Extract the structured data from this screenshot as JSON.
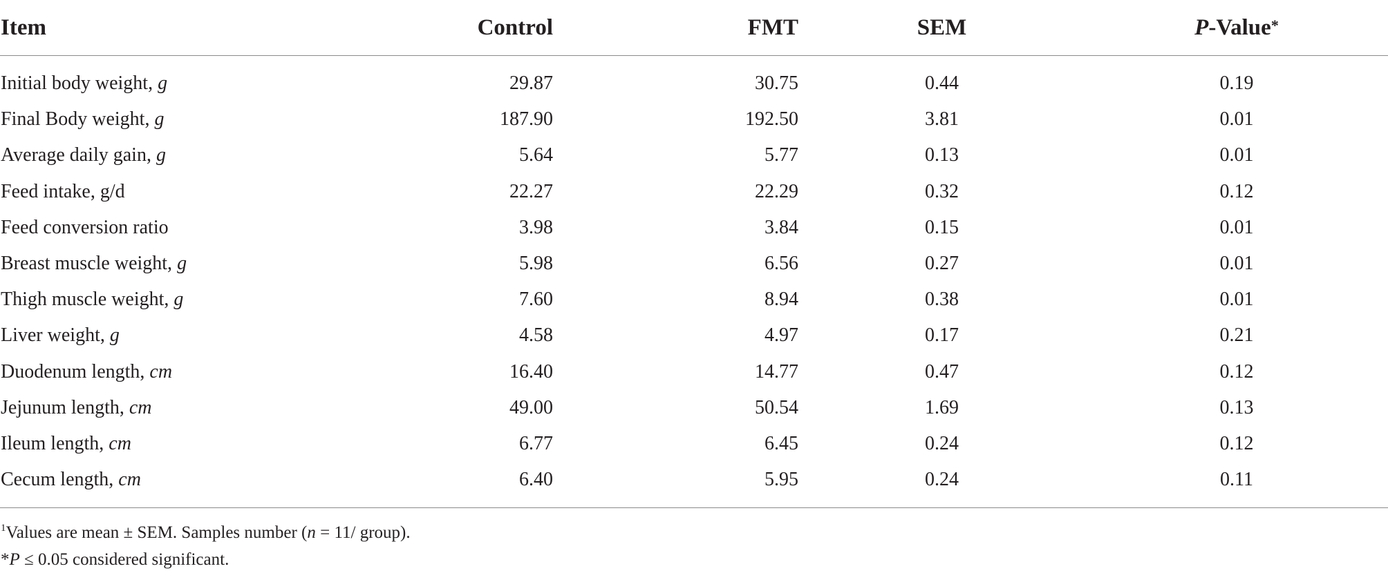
{
  "table": {
    "headers": {
      "item": "Item",
      "control": "Control",
      "fmt": "FMT",
      "sem": "SEM",
      "p_value_italic": "P",
      "p_value_rest": "-Value",
      "p_value_mark": "*"
    },
    "rows": [
      {
        "label": "Initial body weight, ",
        "unit": "g",
        "control": "29.87",
        "fmt": "30.75",
        "sem": "0.44",
        "p": "0.19"
      },
      {
        "label": "Final Body weight, ",
        "unit": "g",
        "control": "187.90",
        "fmt": "192.50",
        "sem": "3.81",
        "p": "0.01"
      },
      {
        "label": "Average daily gain, ",
        "unit": "g",
        "control": "5.64",
        "fmt": "5.77",
        "sem": "0.13",
        "p": "0.01"
      },
      {
        "label": "Feed intake, g/d",
        "unit": "",
        "control": "22.27",
        "fmt": "22.29",
        "sem": "0.32",
        "p": "0.12"
      },
      {
        "label": "Feed conversion ratio",
        "unit": "",
        "control": "3.98",
        "fmt": "3.84",
        "sem": "0.15",
        "p": "0.01"
      },
      {
        "label": "Breast muscle weight, ",
        "unit": "g",
        "control": "5.98",
        "fmt": "6.56",
        "sem": "0.27",
        "p": "0.01"
      },
      {
        "label": "Thigh muscle weight, ",
        "unit": "g",
        "control": "7.60",
        "fmt": "8.94",
        "sem": "0.38",
        "p": "0.01"
      },
      {
        "label": "Liver weight, ",
        "unit": "g",
        "control": "4.58",
        "fmt": "4.97",
        "sem": "0.17",
        "p": "0.21"
      },
      {
        "label": "Duodenum length, ",
        "unit": "cm",
        "control": "16.40",
        "fmt": "14.77",
        "sem": "0.47",
        "p": "0.12"
      },
      {
        "label": "Jejunum length, ",
        "unit": "cm",
        "control": "49.00",
        "fmt": "50.54",
        "sem": "1.69",
        "p": "0.13"
      },
      {
        "label": "Ileum length, ",
        "unit": "cm",
        "control": "6.77",
        "fmt": "6.45",
        "sem": "0.24",
        "p": "0.12"
      },
      {
        "label": "Cecum length, ",
        "unit": "cm",
        "control": "6.40",
        "fmt": "5.95",
        "sem": "0.24",
        "p": "0.11"
      }
    ]
  },
  "footnotes": {
    "note1_mark": "1",
    "note1_text_a": "Values are mean ± SEM. Samples number (",
    "note1_n": "n",
    "note1_text_b": " = 11/ group).",
    "note2_mark": "*",
    "note2_p": "P",
    "note2_text": " ≤ 0.05 considered significant."
  }
}
